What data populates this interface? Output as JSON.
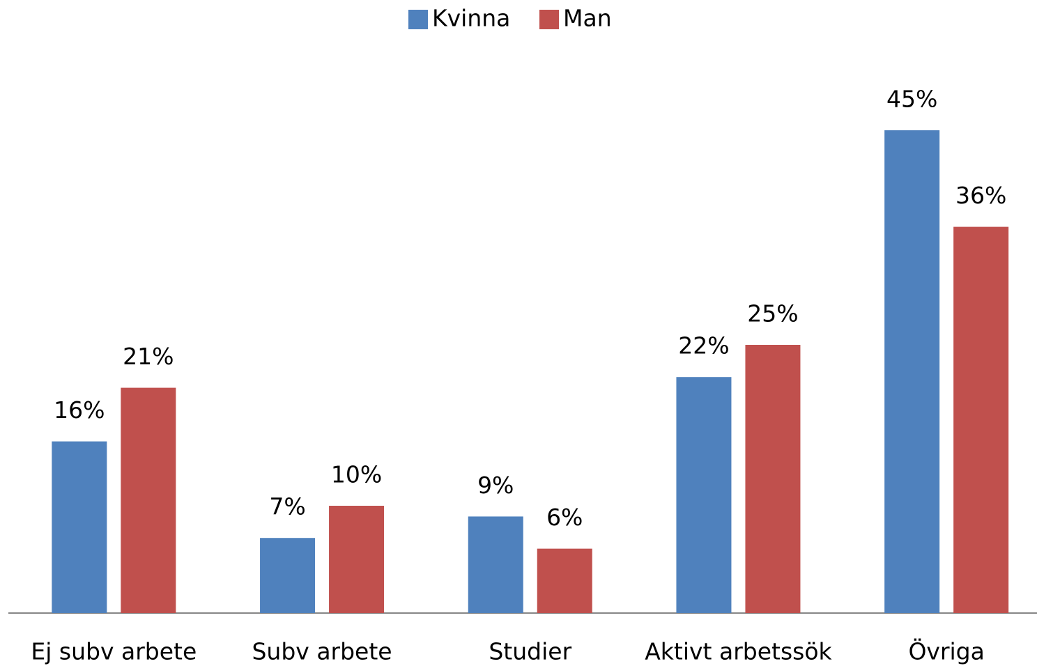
{
  "chart_data": {
    "type": "bar",
    "categories": [
      "Ej subv arbete",
      "Subv arbete",
      "Studier",
      "Aktivt arbetssök",
      "Övriga"
    ],
    "series": [
      {
        "name": "Kvinna",
        "color": "#4f81bd",
        "values": [
          16,
          7,
          9,
          22,
          45
        ],
        "value_labels": [
          "16%",
          "7%",
          "9%",
          "22%",
          "45%"
        ]
      },
      {
        "name": "Man",
        "color": "#c0504d",
        "values": [
          21,
          10,
          6,
          25,
          36
        ],
        "value_labels": [
          "21%",
          "10%",
          "6%",
          "25%",
          "36%"
        ]
      }
    ],
    "legend": "top"
  }
}
